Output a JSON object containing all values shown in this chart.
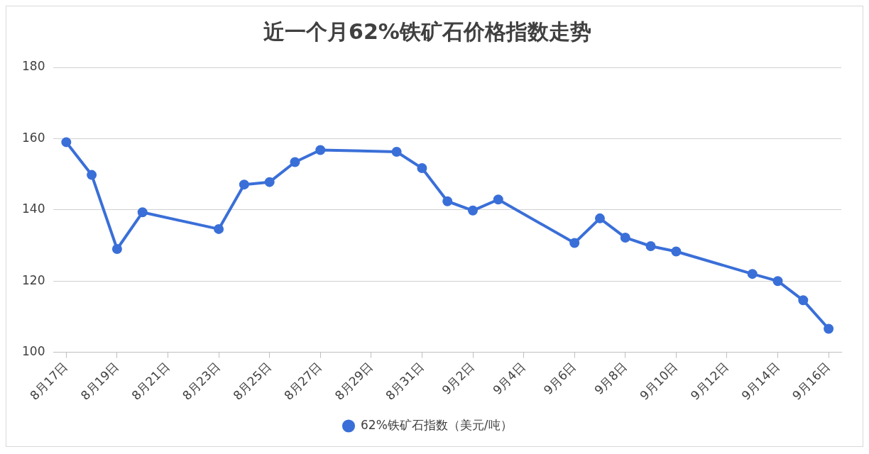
{
  "chart_data": {
    "type": "line",
    "title": "近一个月62%铁矿石价格指数走势",
    "x": [
      "--08-17",
      "--08-18",
      "--08-19",
      "--08-20",
      "--08-23",
      "--08-24",
      "--08-25",
      "--08-26",
      "--08-27",
      "--08-30",
      "--08-31",
      "--09-01",
      "--09-02",
      "--09-03",
      "--09-06",
      "--09-07",
      "--09-08",
      "--09-09",
      "--09-10",
      "--09-13",
      "--09-14",
      "--09-15",
      "--09-16"
    ],
    "series": [
      {
        "name": "62%铁矿石指数（美元/吨）",
        "color": "#3a6fd8",
        "values": [
          159.0,
          149.8,
          129.0,
          139.3,
          134.6,
          147.1,
          147.8,
          153.4,
          156.8,
          156.3,
          151.7,
          142.4,
          139.8,
          142.9,
          130.7,
          137.6,
          132.2,
          129.8,
          128.3,
          122.0,
          120.0,
          114.6,
          106.6
        ]
      }
    ],
    "xlim": [
      "--08-16T12:00",
      "--09-16T12:00"
    ],
    "xticks": [
      {
        "value": "--08-17",
        "label": "8月17日"
      },
      {
        "value": "--08-19",
        "label": "8月19日"
      },
      {
        "value": "--08-21",
        "label": "8月21日"
      },
      {
        "value": "--08-23",
        "label": "8月23日"
      },
      {
        "value": "--08-25",
        "label": "8月25日"
      },
      {
        "value": "--08-27",
        "label": "8月27日"
      },
      {
        "value": "--08-29",
        "label": "8月29日"
      },
      {
        "value": "--08-31",
        "label": "8月31日"
      },
      {
        "value": "--09-02",
        "label": "9月2日"
      },
      {
        "value": "--09-04",
        "label": "9月4日"
      },
      {
        "value": "--09-06",
        "label": "9月6日"
      },
      {
        "value": "--09-08",
        "label": "9月8日"
      },
      {
        "value": "--09-10",
        "label": "9月10日"
      },
      {
        "value": "--09-12",
        "label": "9月12日"
      },
      {
        "value": "--09-14",
        "label": "9月14日"
      },
      {
        "value": "--09-16",
        "label": "9月16日"
      }
    ],
    "ylim": [
      100,
      180
    ],
    "yticks": [
      100,
      120,
      140,
      160,
      180
    ],
    "grid": "y",
    "legend": "bottom",
    "marker": "circle",
    "line_style": "solid"
  }
}
